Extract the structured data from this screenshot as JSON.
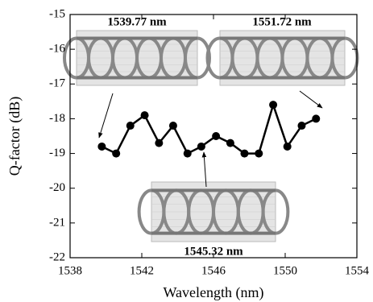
{
  "chart_data": {
    "type": "line",
    "x_label": "Wavelength (nm)",
    "y_label": "Q-factor (dB)",
    "annotations": [
      "1539.77 nm",
      "1551.72 nm",
      "1545.32 nm"
    ],
    "x": [
      1539.77,
      1540.57,
      1541.36,
      1542.16,
      1542.96,
      1543.75,
      1544.55,
      1545.32,
      1546.14,
      1546.94,
      1547.73,
      1548.53,
      1549.33,
      1550.12,
      1550.92,
      1551.72
    ],
    "series": [
      {
        "color": "#000000",
        "values": [
          -18.8,
          -19.0,
          -18.2,
          -17.9,
          -18.7,
          -18.2,
          -19.0,
          -18.8,
          -18.5,
          -18.7,
          -19.0,
          -19.0,
          -17.6,
          -18.8,
          -18.2,
          -18.0
        ]
      }
    ],
    "xlim": [
      1538,
      1554
    ],
    "xticks": [
      1538,
      1542,
      1546,
      1550,
      1554
    ],
    "ylim": [
      -22,
      -15
    ],
    "yticks": [
      -22,
      -21,
      -20,
      -19,
      -18,
      -17,
      -16,
      -15
    ]
  }
}
